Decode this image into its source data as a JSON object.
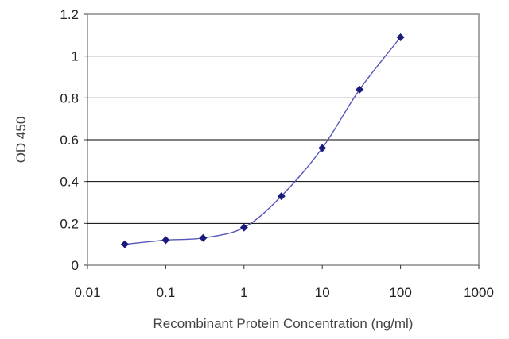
{
  "chart_data": {
    "type": "scatter",
    "title": "",
    "xlabel": "Recombinant Protein Concentration (ng/ml)",
    "ylabel": "OD 450",
    "x_scale": "log",
    "xlim": [
      0.01,
      1000
    ],
    "ylim": [
      0,
      1.2
    ],
    "grid": "horizontal",
    "legend": "none",
    "x_ticks": [
      "0.01",
      "0.1",
      "1",
      "10",
      "100",
      "1000"
    ],
    "y_ticks": [
      "0",
      "0.2",
      "0.4",
      "0.6",
      "0.8",
      "1",
      "1.2"
    ],
    "fit_line": true,
    "series": [
      {
        "x": [
          0.03,
          0.1,
          0.3,
          1,
          3,
          10,
          30,
          100
        ],
        "y": [
          0.1,
          0.12,
          0.13,
          0.18,
          0.33,
          0.56,
          0.84,
          1.09
        ]
      }
    ],
    "colors": {
      "marker": "#1a1a7a",
      "line": "#5555bb",
      "grid": "#000000",
      "frame": "#8a8a8a"
    }
  }
}
